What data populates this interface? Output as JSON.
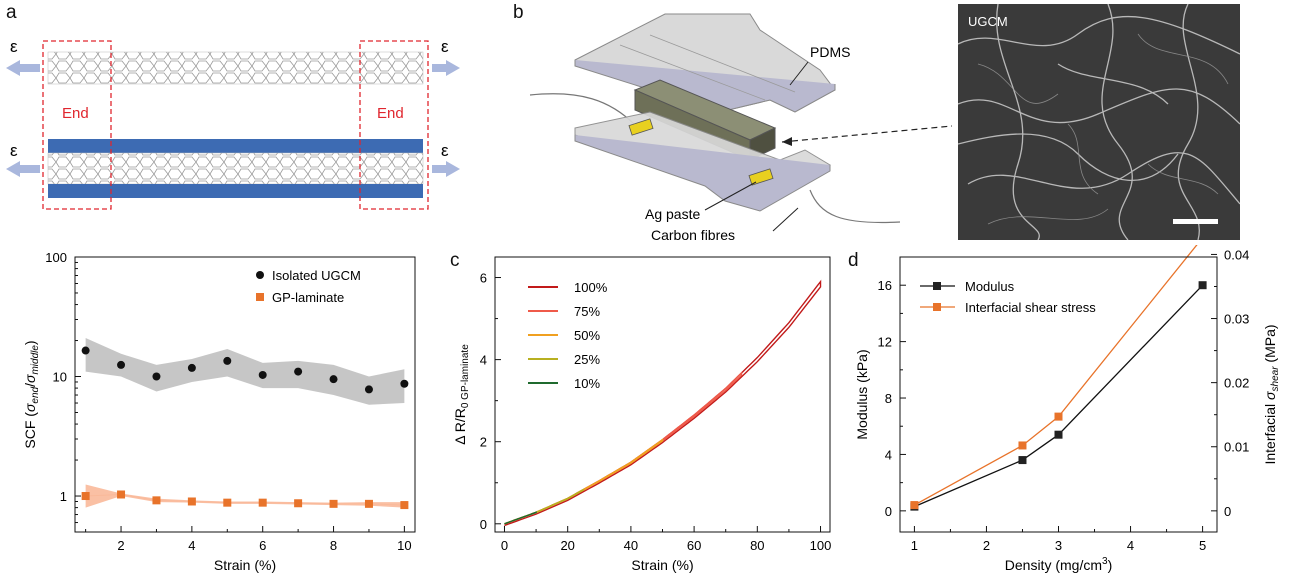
{
  "panel_labels": {
    "a": "a",
    "b": "b",
    "c": "c",
    "d": "d"
  },
  "panel_a": {
    "epsilon": "ε",
    "end_label": "End"
  },
  "panel_b": {
    "pdms": "PDMS",
    "ag_paste": "Ag paste",
    "carbon_fibres": "Carbon fibres",
    "micrograph_label": "UGCM"
  },
  "colors": {
    "black": "#111111",
    "orange": "#e8732a",
    "orange_light": "#f9b99a",
    "grey_band": "#b3b3b3",
    "laminate_blue": "#3d6bb3",
    "end_red": "#e0262e",
    "arrow_blue": "#a9b7dd"
  },
  "chart_data": [
    {
      "type": "scatter",
      "panel": "SCF vs strain",
      "xlabel": "Strain (%)",
      "ylabel": "SCF (σend/σmiddle)",
      "ylabel_parts": {
        "pre": "SCF (",
        "sym1": "σ",
        "sub1": "end",
        "slash": "/",
        "sym2": "σ",
        "sub2": "middle",
        "post": ")"
      },
      "y_scale": "log",
      "xlim": [
        0.7,
        10.3
      ],
      "ylim": [
        0.5,
        100
      ],
      "x_ticks": [
        "2",
        "4",
        "6",
        "8",
        "10"
      ],
      "y_ticks": [
        "1",
        "10",
        "100"
      ],
      "legend_position": "top-right",
      "series": [
        {
          "name": "Isolated UGCM",
          "x": [
            1,
            2,
            3,
            4,
            5,
            6,
            7,
            8,
            9,
            10
          ],
          "y": [
            16.5,
            12.5,
            10,
            11.8,
            13.5,
            10.3,
            11,
            9.5,
            7.8,
            8.7
          ],
          "band_upper": [
            21,
            15.5,
            12.5,
            14,
            17,
            13,
            13.5,
            12.5,
            10,
            11.5
          ],
          "band_lower": [
            11,
            10,
            7.5,
            9,
            10,
            8,
            8,
            7,
            5.8,
            6
          ]
        },
        {
          "name": "GP-laminate",
          "x": [
            1,
            2,
            3,
            4,
            5,
            6,
            7,
            8,
            9,
            10
          ],
          "y": [
            1.0,
            1.03,
            0.92,
            0.9,
            0.88,
            0.88,
            0.87,
            0.86,
            0.86,
            0.84
          ],
          "band_upper": [
            1.25,
            1.05,
            0.95,
            0.92,
            0.9,
            0.9,
            0.89,
            0.88,
            0.89,
            0.89
          ],
          "band_lower": [
            0.8,
            1.0,
            0.89,
            0.88,
            0.86,
            0.86,
            0.85,
            0.84,
            0.83,
            0.8
          ]
        }
      ]
    },
    {
      "type": "line",
      "panel": "c",
      "xlabel": "Strain (%)",
      "ylabel": "ΔR/R0 GP-laminate",
      "ylabel_parts": {
        "main": "Δ R/R",
        "sub": "0 GP-laminate"
      },
      "xlim": [
        -3,
        103
      ],
      "ylim": [
        -0.2,
        6.5
      ],
      "x_ticks": [
        "0",
        "20",
        "40",
        "60",
        "80",
        "100"
      ],
      "y_ticks": [
        "0",
        "2",
        "4",
        "6"
      ],
      "legend_position": "top-left",
      "series": [
        {
          "name": "100%",
          "color": "#c21a1a",
          "max_strain": 100
        },
        {
          "name": "75%",
          "color": "#ef5a4a",
          "max_strain": 75
        },
        {
          "name": "50%",
          "color": "#f0a020",
          "max_strain": 50
        },
        {
          "name": "25%",
          "color": "#b8b020",
          "max_strain": 25
        },
        {
          "name": "10%",
          "color": "#1f6a2e",
          "max_strain": 10
        }
      ],
      "curve_x": [
        0,
        10,
        20,
        30,
        40,
        50,
        60,
        70,
        80,
        90,
        95,
        100
      ],
      "curve_y": [
        0,
        0.28,
        0.62,
        1.05,
        1.5,
        2.05,
        2.65,
        3.3,
        4.05,
        4.9,
        5.4,
        5.9
      ]
    },
    {
      "type": "line",
      "panel": "d",
      "xlabel": "Density (mg/cm3)",
      "xlabel_parts": {
        "main": "Density (mg/cm",
        "sup": "3",
        "post": ")"
      },
      "ylabel": "Modulus (kPa)",
      "y2label": "Interfacial σshear (MPa)",
      "y2label_parts": {
        "pre": "Interfacial ",
        "sym": "σ",
        "sub": "shear",
        "post": " (MPa)"
      },
      "xlim": [
        0.8,
        5.2
      ],
      "ylim": [
        -1.5,
        18
      ],
      "y2lim": [
        -0.0033,
        0.0396
      ],
      "x_ticks": [
        "1",
        "2",
        "3",
        "4",
        "5"
      ],
      "y_ticks": [
        "0",
        "4",
        "8",
        "12",
        "16"
      ],
      "y2_ticks": [
        "0",
        "0.01",
        "0.02",
        "0.03",
        "0.04"
      ],
      "legend_position": "top-left",
      "series": [
        {
          "name": "Modulus",
          "axis": "left",
          "x": [
            1,
            2.5,
            3,
            5
          ],
          "y": [
            0.3,
            3.6,
            5.4,
            16.0
          ]
        },
        {
          "name": "Interfacial shear stress",
          "axis": "right",
          "x": [
            1,
            2.5,
            3,
            5
          ],
          "y": [
            0.0009,
            0.0102,
            0.0147,
            0.0426
          ]
        }
      ]
    }
  ]
}
